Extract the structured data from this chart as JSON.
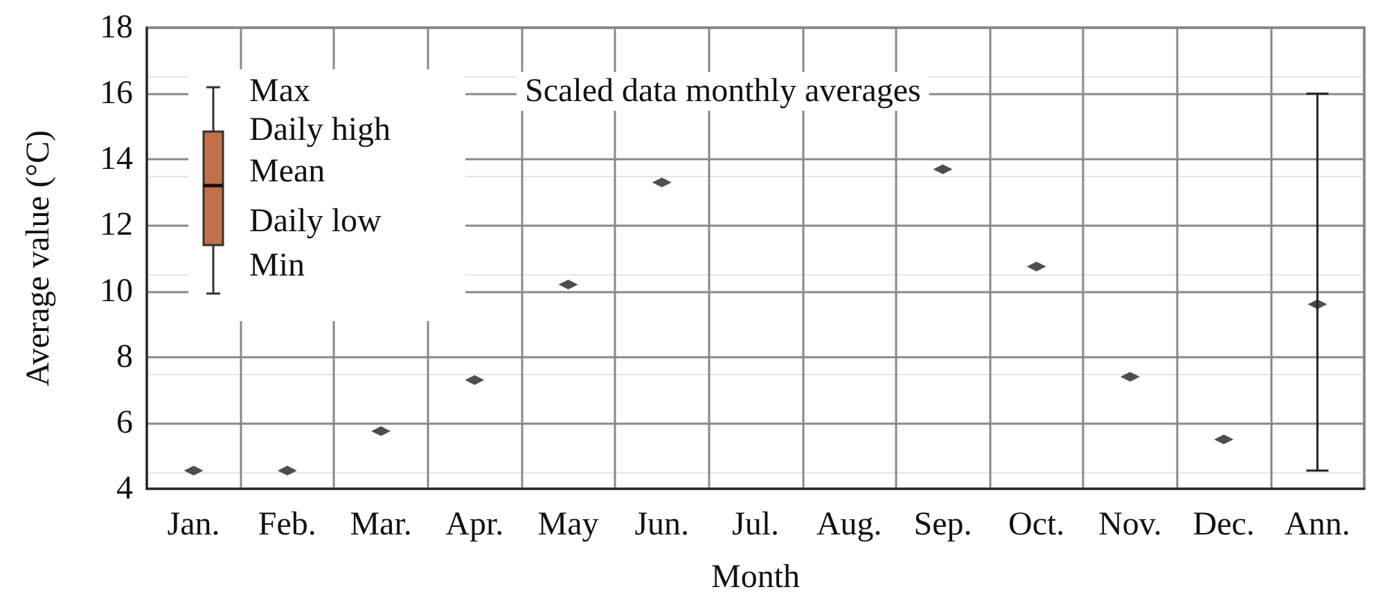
{
  "chart_data": {
    "type": "scatter",
    "title": "Scaled data monthly averages",
    "xlabel": "Month",
    "ylabel": "Average value (°C)",
    "categories": [
      "Jan.",
      "Feb.",
      "Mar.",
      "Apr.",
      "May",
      "Jun.",
      "Jul.",
      "Aug.",
      "Sep.",
      "Oct.",
      "Nov.",
      "Dec.",
      "Ann."
    ],
    "values": [
      4.55,
      4.55,
      5.75,
      7.3,
      10.2,
      13.3,
      null,
      null,
      13.7,
      10.75,
      7.4,
      5.5,
      9.6
    ],
    "errors": [
      null,
      null,
      null,
      null,
      null,
      null,
      null,
      null,
      null,
      null,
      null,
      null,
      [
        4.55,
        16
      ]
    ],
    "color": "#222222",
    "marker": "diamond",
    "ylim": [
      4,
      18
    ],
    "yticks": [
      4,
      6,
      8,
      10,
      12,
      14,
      16,
      18
    ],
    "grid": true,
    "annotations": [
      "Max",
      "Daily high",
      "Mean",
      "Daily low",
      "Min"
    ]
  }
}
